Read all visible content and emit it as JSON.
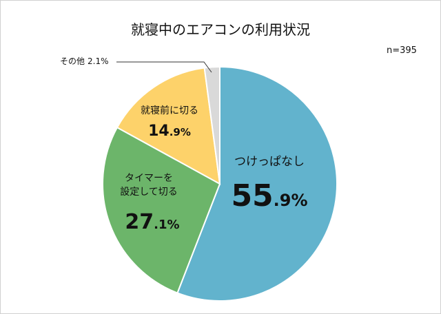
{
  "chart_data": {
    "type": "pie",
    "title": "就寝中のエアコンの利用状況",
    "annotation": "n=395",
    "categories": [
      "つけっぱなし",
      "タイマーを\n設定して切る",
      "就寝前に切る",
      "その他"
    ],
    "values": [
      55.9,
      27.1,
      14.9,
      2.1
    ],
    "value_labels": [
      "55.9%",
      "27.1%",
      "14.9%",
      "2.1%"
    ],
    "colors": [
      "#62b3cd",
      "#6cb56a",
      "#fdd26a",
      "#d9d9d9"
    ]
  }
}
